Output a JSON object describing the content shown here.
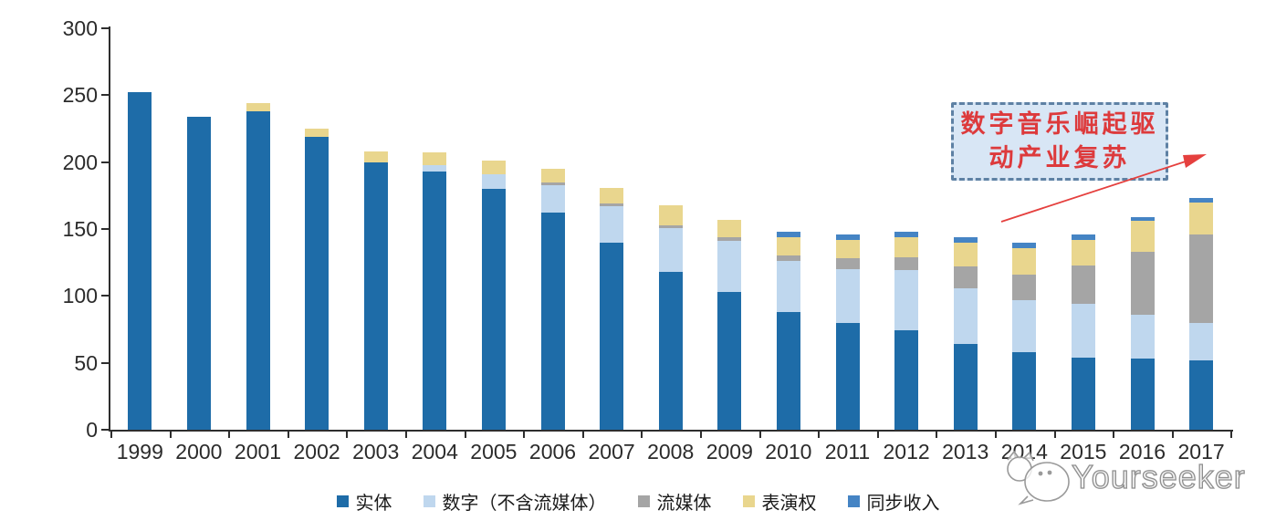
{
  "chart_data": {
    "type": "bar",
    "stacked": true,
    "title": "",
    "xlabel": "",
    "ylabel": "",
    "ylim": [
      0,
      300
    ],
    "yticks": [
      0,
      50,
      100,
      150,
      200,
      250,
      300
    ],
    "grid": false,
    "legend_position": "bottom",
    "categories": [
      "1999",
      "2000",
      "2001",
      "2002",
      "2003",
      "2004",
      "2005",
      "2006",
      "2007",
      "2008",
      "2009",
      "2010",
      "2011",
      "2012",
      "2013",
      "2014",
      "2015",
      "2016",
      "2017"
    ],
    "series": [
      {
        "name": "实体",
        "color": "#1e6ca8",
        "values": [
          252,
          234,
          238,
          219,
          200,
          193,
          180,
          162,
          140,
          118,
          103,
          88,
          80,
          74,
          64,
          58,
          54,
          53,
          52
        ]
      },
      {
        "name": "数字（不含流媒体）",
        "color": "#bfd7ee",
        "values": [
          0,
          0,
          0,
          0,
          0,
          5,
          11,
          21,
          27,
          33,
          38,
          38,
          40,
          45,
          42,
          39,
          40,
          33,
          28
        ]
      },
      {
        "name": "流媒体",
        "color": "#a5a5a5",
        "values": [
          0,
          0,
          0,
          0,
          0,
          0,
          0,
          2,
          2,
          2,
          3,
          4,
          8,
          10,
          16,
          19,
          29,
          47,
          66
        ]
      },
      {
        "name": "表演权",
        "color": "#e9d68e",
        "values": [
          0,
          0,
          6,
          6,
          8,
          9,
          10,
          10,
          12,
          15,
          13,
          14,
          14,
          15,
          18,
          20,
          19,
          23,
          24
        ]
      },
      {
        "name": "同步收入",
        "color": "#4584c4",
        "values": [
          0,
          0,
          0,
          0,
          0,
          0,
          0,
          0,
          0,
          0,
          0,
          4,
          4,
          4,
          4,
          4,
          4,
          3,
          3
        ]
      }
    ]
  },
  "annotation": {
    "line1": "数字音乐崛起驱",
    "line2": "动产业复苏",
    "text_color": "#dd3a3c",
    "box_fill": "#d8e6f5",
    "box_border": "#5e81a4",
    "arrow_color": "#e5403e"
  },
  "watermark": {
    "text": "Yourseeker",
    "logo": "cat-face-logo"
  },
  "colors": {
    "axis": "#2e2e2e",
    "tick_label": "#2b2b2b",
    "background": "#ffffff"
  }
}
